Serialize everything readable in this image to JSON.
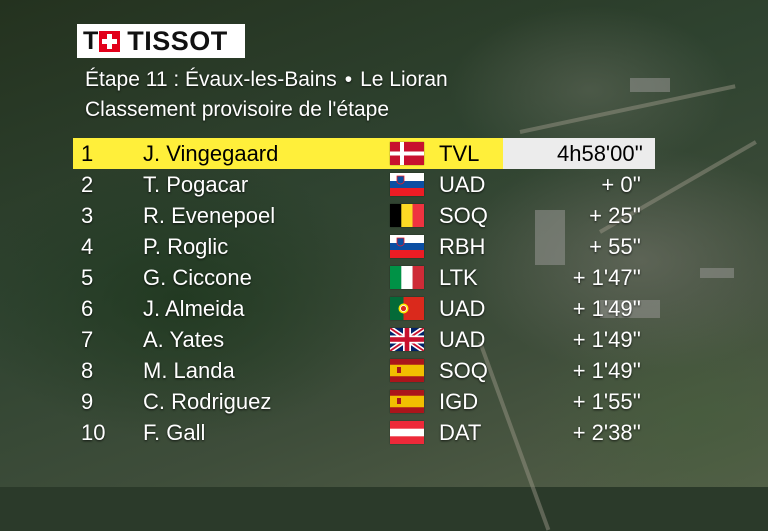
{
  "brand": {
    "logo_text": "TISSOT"
  },
  "header": {
    "stage": "Étape 11 : Évaux-les-Bains",
    "separator": "•",
    "finish": "Le Lioran",
    "subtitle": "Classement provisoire de l'étape"
  },
  "standings": [
    {
      "rank": "1",
      "name": "J. Vingegaard",
      "flag": "denmark",
      "team": "TVL",
      "time": "4h58'00''"
    },
    {
      "rank": "2",
      "name": "T. Pogacar",
      "flag": "slovenia",
      "team": "UAD",
      "time": "+   0''"
    },
    {
      "rank": "3",
      "name": "R. Evenepoel",
      "flag": "belgium",
      "team": "SOQ",
      "time": "+  25''"
    },
    {
      "rank": "4",
      "name": "P. Roglic",
      "flag": "slovenia",
      "team": "RBH",
      "time": "+  55''"
    },
    {
      "rank": "5",
      "name": "G. Ciccone",
      "flag": "italy",
      "team": "LTK",
      "time": "+ 1'47''"
    },
    {
      "rank": "6",
      "name": "J. Almeida",
      "flag": "portugal",
      "team": "UAD",
      "time": "+ 1'49''"
    },
    {
      "rank": "7",
      "name": "A. Yates",
      "flag": "united-kingdom",
      "team": "UAD",
      "time": "+ 1'49''"
    },
    {
      "rank": "8",
      "name": "M. Landa",
      "flag": "spain",
      "team": "SOQ",
      "time": "+ 1'49''"
    },
    {
      "rank": "9",
      "name": "C. Rodriguez",
      "flag": "spain",
      "team": "IGD",
      "time": "+ 1'55''"
    },
    {
      "rank": "10",
      "name": "F. Gall",
      "flag": "austria",
      "team": "DAT",
      "time": "+ 2'38''"
    }
  ],
  "colors": {
    "leader_highlight": "#ffef3a",
    "leader_time_bg": "#ececec",
    "text": "#ffffff"
  }
}
